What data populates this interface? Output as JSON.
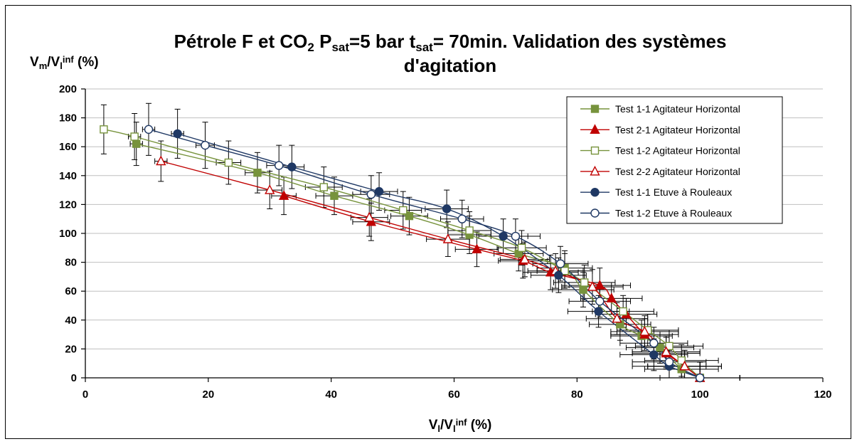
{
  "chart_data": {
    "type": "scatter",
    "title": {
      "line1": [
        "Pétrole F et CO",
        "2",
        " P",
        "sat",
        "=5 bar t",
        "sat",
        "= 70min. Validation des systèmes"
      ],
      "line2": "d'agitation"
    },
    "xlabel": [
      "V",
      "l",
      "/V",
      "l",
      "inf",
      " (%)"
    ],
    "ylabel": [
      "V",
      "m",
      "/V",
      "l",
      "inf",
      " (%)"
    ],
    "xlim": [
      0,
      120
    ],
    "ylim": [
      0,
      200
    ],
    "xticks": [
      "0",
      "20",
      "40",
      "60",
      "80",
      "100",
      "120"
    ],
    "yticks": [
      "0",
      "20",
      "40",
      "60",
      "80",
      "100",
      "120",
      "140",
      "160",
      "180",
      "200"
    ],
    "grid": "horizontal",
    "legend_position": "top-right",
    "colors": {
      "green": "#77933c",
      "red": "#c00000",
      "navy": "#1f3864"
    },
    "series": [
      {
        "name": "Test 1-1 Agitateur Horizontal",
        "color": "#77933c",
        "marker": "square",
        "filled": true,
        "x": [
          8.3,
          28,
          40.5,
          52.7,
          62.5,
          70.5,
          78,
          81,
          87,
          90.5,
          93.5,
          97,
          100
        ],
        "y": [
          162,
          142,
          126,
          112,
          99,
          86,
          76,
          61,
          37,
          29,
          21,
          6,
          0
        ],
        "xerr": [
          1,
          2,
          3,
          3,
          3.5,
          4,
          4.5,
          5,
          5,
          5,
          5.5,
          6,
          6.5
        ],
        "yerr": [
          15,
          14,
          13,
          13,
          13,
          12,
          12,
          12,
          11,
          11,
          11,
          11,
          11
        ]
      },
      {
        "name": "Test 2-1 Agitateur Horizontal",
        "color": "#c00000",
        "marker": "triangle",
        "filled": true,
        "x": [
          32.3,
          46.5,
          63.7,
          71.2,
          75.7,
          83.7,
          85.6,
          88,
          91,
          94.5,
          97.5,
          100
        ],
        "y": [
          126,
          108,
          89,
          81,
          73,
          64,
          55,
          44,
          30,
          17,
          8,
          0
        ],
        "xerr": [
          2,
          3,
          3.5,
          4,
          4.5,
          5,
          5,
          5,
          5.5,
          5.5,
          6,
          6.5
        ],
        "yerr": [
          13,
          13,
          12,
          12,
          12,
          12,
          11,
          11,
          11,
          11,
          11,
          11
        ]
      },
      {
        "name": "Test 1-2 Agitateur Horizontal",
        "color": "#77933c",
        "marker": "square",
        "filled": false,
        "x": [
          3,
          8,
          23.3,
          38.8,
          51.7,
          62.5,
          71,
          78,
          81.2,
          87.5,
          91.5,
          95,
          97,
          100
        ],
        "y": [
          172,
          167,
          149,
          132,
          116,
          102,
          90,
          74,
          66,
          46,
          33,
          22,
          12,
          0
        ],
        "xerr": [
          0.5,
          1,
          2,
          3,
          3,
          3.5,
          4,
          4.5,
          5,
          5,
          5,
          5.5,
          6,
          6.5
        ],
        "yerr": [
          17,
          16,
          15,
          14,
          13,
          13,
          12,
          12,
          12,
          11,
          11,
          11,
          11,
          11
        ]
      },
      {
        "name": "Test 2-2 Agitateur Horizontal",
        "color": "#c00000",
        "marker": "triangle",
        "filled": false,
        "x": [
          12.3,
          30,
          46.2,
          59,
          71.5,
          76.5,
          82.5,
          86.5,
          91,
          94.5,
          97.5,
          100
        ],
        "y": [
          150,
          130,
          111,
          96,
          82,
          74,
          63,
          41,
          32,
          18,
          8,
          0
        ],
        "xerr": [
          1,
          2,
          3,
          3.5,
          4,
          4.5,
          5,
          5,
          5.5,
          5.5,
          6,
          6.5
        ],
        "yerr": [
          14,
          13,
          13,
          12,
          12,
          12,
          12,
          11,
          11,
          11,
          11,
          11
        ]
      },
      {
        "name": "Test 1-1 Etuve à Rouleaux",
        "color": "#1f3864",
        "marker": "circle",
        "filled": true,
        "x": [
          15,
          33.6,
          47.8,
          58.8,
          68,
          77,
          83.5,
          92.5,
          95,
          100
        ],
        "y": [
          169,
          146,
          129,
          117,
          98,
          71,
          46,
          16,
          8,
          0
        ],
        "xerr": [
          1,
          2,
          3,
          3.5,
          4,
          4.5,
          5,
          5.5,
          6,
          6.5
        ],
        "yerr": [
          17,
          15,
          13,
          13,
          12,
          12,
          11,
          11,
          11,
          11
        ]
      },
      {
        "name": "Test 1-2 Etuve à Rouleaux",
        "color": "#1f3864",
        "marker": "circle",
        "filled": false,
        "x": [
          10.3,
          19.5,
          31.5,
          46.5,
          61.3,
          70,
          77.3,
          83.7,
          92.5,
          95,
          100
        ],
        "y": [
          172,
          161,
          147,
          127,
          110,
          98,
          79,
          53,
          24,
          11,
          0
        ],
        "xerr": [
          1,
          1.5,
          2,
          3,
          3.5,
          4,
          4.5,
          5,
          5.5,
          6,
          6.5
        ],
        "yerr": [
          18,
          16,
          14,
          13,
          13,
          12,
          12,
          11,
          11,
          11,
          11
        ]
      }
    ]
  }
}
